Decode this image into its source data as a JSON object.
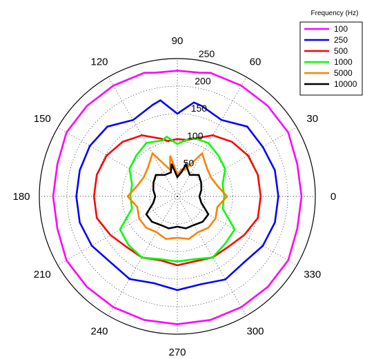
{
  "chart_data": {
    "type": "polar-line",
    "title": "",
    "angle_unit": "degrees",
    "rlim": [
      0,
      250
    ],
    "radial_ticks": [
      50,
      100,
      150,
      200,
      250
    ],
    "angle_ticks": [
      0,
      30,
      60,
      90,
      120,
      150,
      180,
      210,
      240,
      270,
      300,
      330
    ],
    "grid": true,
    "legend": {
      "title": "Frequency (Hz)",
      "placement": "top-right"
    },
    "angles": [
      0,
      15,
      30,
      45,
      60,
      75,
      80,
      90,
      100,
      105,
      120,
      135,
      150,
      165,
      180,
      195,
      210,
      225,
      240,
      255,
      270,
      285,
      300,
      315,
      330,
      345
    ],
    "series": [
      {
        "name": "100",
        "color": "#ff00ff",
        "values": [
          225,
          225,
          232,
          232,
          232,
          232,
          228,
          228,
          228,
          232,
          232,
          232,
          232,
          225,
          225,
          225,
          232,
          232,
          232,
          232,
          232,
          232,
          232,
          232,
          232,
          225
        ]
      },
      {
        "name": "250",
        "color": "#0000ff",
        "values": [
          183,
          183,
          179,
          179,
          160,
          170,
          173,
          150,
          177,
          172,
          160,
          179,
          183,
          183,
          183,
          183,
          179,
          170,
          173,
          163,
          170,
          165,
          174,
          170,
          179,
          183
        ]
      },
      {
        "name": "500",
        "color": "#ff0000",
        "values": [
          151,
          151,
          148,
          140,
          128,
          108,
          104,
          104,
          102,
          108,
          128,
          140,
          148,
          151,
          151,
          151,
          140,
          130,
          128,
          120,
          125,
          122,
          128,
          130,
          140,
          151
        ]
      },
      {
        "name": "1000",
        "color": "#00ff00",
        "values": [
          85,
          85,
          100,
          105,
          112,
          110,
          105,
          95,
          110,
          105,
          112,
          105,
          100,
          85,
          85,
          85,
          120,
          125,
          128,
          118,
          118,
          118,
          128,
          122,
          120,
          85
        ]
      },
      {
        "name": "5000",
        "color": "#ff8000",
        "values": [
          90,
          75,
          70,
          75,
          90,
          50,
          50,
          40,
          75,
          50,
          90,
          75,
          70,
          75,
          90,
          75,
          80,
          80,
          75,
          80,
          75,
          80,
          75,
          80,
          80,
          75
        ]
      },
      {
        "name": "10000",
        "color": "#000000",
        "values": [
          40,
          45,
          50,
          55,
          45,
          60,
          45,
          35,
          60,
          45,
          45,
          55,
          50,
          45,
          40,
          45,
          65,
          65,
          60,
          60,
          55,
          60,
          60,
          65,
          65,
          45
        ]
      }
    ]
  }
}
